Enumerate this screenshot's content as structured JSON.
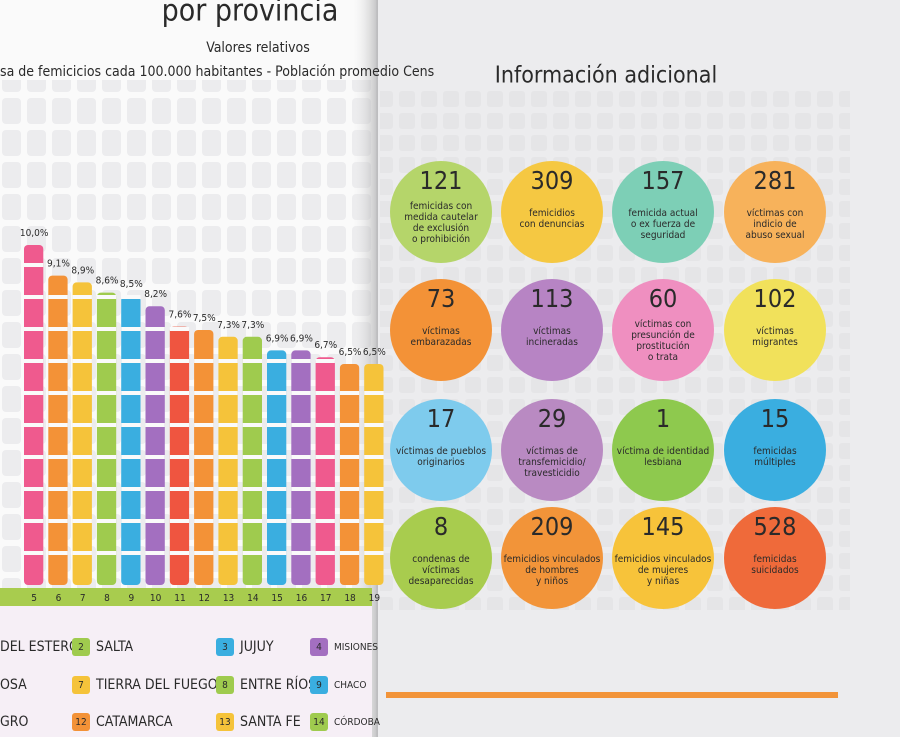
{
  "chart_data": {
    "type": "bar",
    "title": "por provincia",
    "subtitle": "Valores relativos",
    "note": "sa de femicicios cada 100.000 habitantes - Población promedio Cens",
    "categories": [
      "5",
      "6",
      "7",
      "8",
      "9",
      "10",
      "11",
      "12",
      "13",
      "14",
      "15",
      "16",
      "17",
      "18",
      "19"
    ],
    "values": [
      10.0,
      9.1,
      8.9,
      8.6,
      8.5,
      8.2,
      7.6,
      7.5,
      7.3,
      7.3,
      6.9,
      6.9,
      6.7,
      6.5,
      6.5
    ],
    "value_labels": [
      "10,0%",
      "9,1%",
      "8,9%",
      "8,6%",
      "8,5%",
      "8,2%",
      "7,6%",
      "7,5%",
      "7,3%",
      "7,3%",
      "6,9%",
      "6,9%",
      "6,7%",
      "6,5%",
      "6,5%"
    ],
    "colors": [
      "#ef5a8e",
      "#f39237",
      "#f5c33a",
      "#9fcb4e",
      "#3aaee0",
      "#a36fc0",
      "#ef5540",
      "#f39237",
      "#f5c33a",
      "#9fcb4e",
      "#3aaee0",
      "#a36fc0",
      "#ef5a8e",
      "#f39237",
      "#f5c33a"
    ],
    "legend_items": [
      {
        "num": null,
        "name": "DEL ESTERO",
        "color": null
      },
      {
        "num": 2,
        "name": "SALTA",
        "color": "#9fcb4e"
      },
      {
        "num": 3,
        "name": "JUJUY",
        "color": "#3aaee0"
      },
      {
        "num": 4,
        "name": "MISIONES",
        "color": "#a36fc0"
      },
      {
        "num": null,
        "name": "OSA",
        "color": null
      },
      {
        "num": 7,
        "name": "TIERRA DEL FUEGO",
        "color": "#f5c33a"
      },
      {
        "num": 8,
        "name": "ENTRE RÍOS",
        "color": "#9fcb4e"
      },
      {
        "num": 9,
        "name": "CHACO",
        "color": "#3aaee0"
      },
      {
        "num": null,
        "name": "GRO",
        "color": null
      },
      {
        "num": 12,
        "name": "CATAMARCA",
        "color": "#f39237"
      },
      {
        "num": 13,
        "name": "SANTA FE",
        "color": "#f5c33a"
      },
      {
        "num": 14,
        "name": "CÓRDOBA",
        "color": "#9fcb4e"
      }
    ]
  },
  "info": {
    "title": "Información adicional",
    "items": [
      {
        "number": 121,
        "lines": [
          "femicidas con",
          "medida cautelar",
          "de exclusión",
          "o prohibición"
        ],
        "color": "#b5d56a"
      },
      {
        "number": 309,
        "lines": [
          "femicidios",
          "con denuncias"
        ],
        "color": "#f5c842"
      },
      {
        "number": 157,
        "lines": [
          "femicida actual",
          "o ex fuerza de",
          "seguridad"
        ],
        "color": "#7dcfb6"
      },
      {
        "number": 281,
        "lines": [
          "víctimas con",
          "indicio de",
          "abuso sexual"
        ],
        "color": "#f7b25b"
      },
      {
        "number": 73,
        "lines": [
          "víctimas",
          "embarazadas"
        ],
        "color": "#f39237"
      },
      {
        "number": 113,
        "lines": [
          "víctimas",
          "incineradas"
        ],
        "color": "#b784c4"
      },
      {
        "number": 60,
        "lines": [
          "víctimas con",
          "presunción de",
          "prostitución",
          "o trata"
        ],
        "color": "#ef8fc0"
      },
      {
        "number": 102,
        "lines": [
          "víctimas",
          "migrantes"
        ],
        "color": "#f1e15b"
      },
      {
        "number": 17,
        "lines": [
          "víctimas de pueblos",
          "originarios"
        ],
        "color": "#7ecbed"
      },
      {
        "number": 29,
        "lines": [
          "víctimas de",
          "transfemicidio/",
          "travesticidio"
        ],
        "color": "#b98ac2"
      },
      {
        "number": 1,
        "lines": [
          "víctima de identidad",
          "lesbiana"
        ],
        "color": "#8ec94e"
      },
      {
        "number": 15,
        "lines": [
          "femicidas",
          "múltiples"
        ],
        "color": "#3aaee0"
      },
      {
        "number": 8,
        "lines": [
          "condenas de",
          "víctimas",
          "desaparecidas"
        ],
        "color": "#a8cc4e"
      },
      {
        "number": 209,
        "lines": [
          "femicidios vinculados",
          "de hombres",
          "y niños"
        ],
        "color": "#f29439"
      },
      {
        "number": 145,
        "lines": [
          "femicidios vinculados",
          "de mujeres",
          "y niñas"
        ],
        "color": "#f7c33a"
      },
      {
        "number": 528,
        "lines": [
          "femicidas",
          "suicidados"
        ],
        "color": "#ef6a3a"
      }
    ]
  }
}
